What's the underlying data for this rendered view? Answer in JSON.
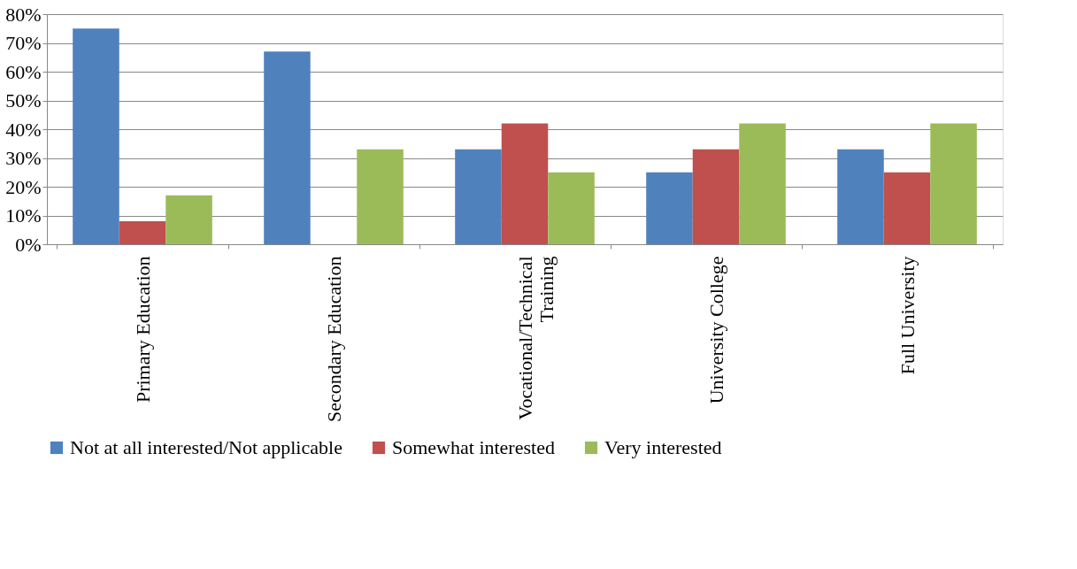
{
  "chart_data": {
    "type": "bar",
    "categories": [
      "Primary Education",
      "Secondary Education",
      "Vocational/Technical Training",
      "University College",
      "Full University"
    ],
    "series": [
      {
        "name": "Not at all interested/Not applicable",
        "color": "#4f81bd",
        "values": [
          75,
          67,
          33,
          25,
          33
        ]
      },
      {
        "name": "Somewhat interested",
        "color": "#c0504d",
        "values": [
          8,
          0,
          42,
          33,
          25
        ]
      },
      {
        "name": "Very interested",
        "color": "#9bbb59",
        "values": [
          17,
          33,
          25,
          42,
          42
        ]
      }
    ],
    "ylim": [
      0,
      80
    ],
    "yticks": [
      {
        "value": 0,
        "label": "0%"
      },
      {
        "value": 10,
        "label": "10%"
      },
      {
        "value": 20,
        "label": "20%"
      },
      {
        "value": 30,
        "label": "30%"
      },
      {
        "value": 40,
        "label": "40%"
      },
      {
        "value": 50,
        "label": "50%"
      },
      {
        "value": 60,
        "label": "60%"
      },
      {
        "value": 70,
        "label": "70%"
      },
      {
        "value": 80,
        "label": "80%"
      }
    ],
    "grid": "y",
    "legend": "bottom"
  }
}
